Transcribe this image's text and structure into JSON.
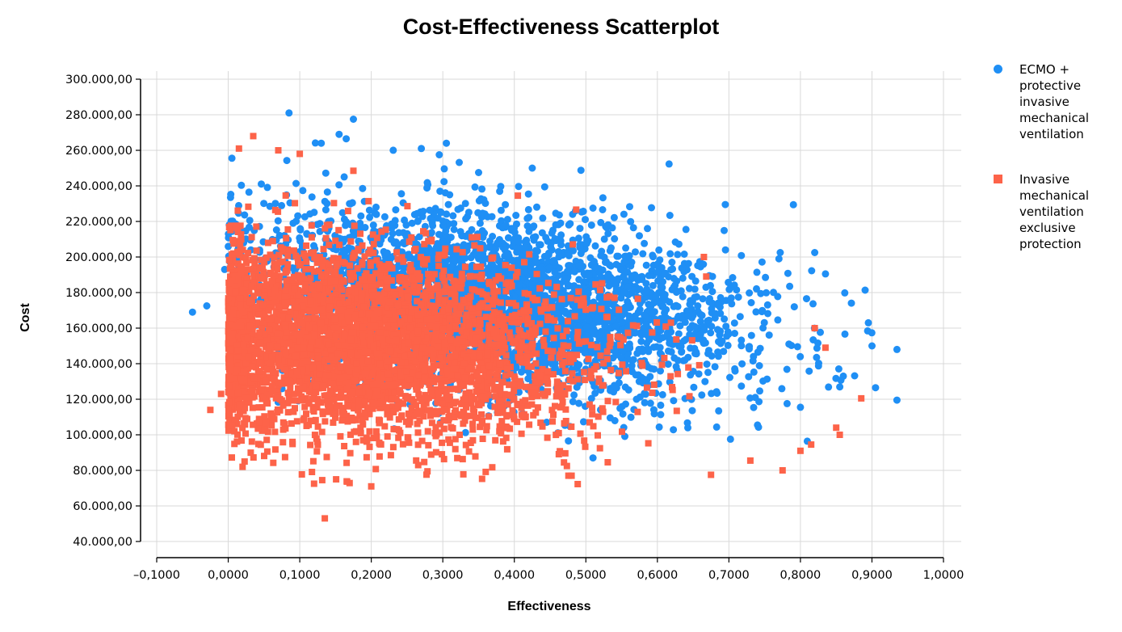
{
  "chart_data": {
    "type": "scatter",
    "title": "Cost-Effectiveness Scatterplot",
    "xlabel": "Effectiveness",
    "ylabel": "Cost",
    "xlim": [
      -0.1,
      1.0
    ],
    "ylim": [
      40000,
      300000
    ],
    "x_ticks": [
      -0.1,
      0.0,
      0.1,
      0.2,
      0.3,
      0.4,
      0.5,
      0.6,
      0.7,
      0.8,
      0.9,
      1.0
    ],
    "x_tick_labels": [
      "–0,1000",
      "0,0000",
      "0,1000",
      "0,2000",
      "0,3000",
      "0,4000",
      "0,5000",
      "0,6000",
      "0,7000",
      "0,8000",
      "0,9000",
      "1,0000"
    ],
    "y_ticks": [
      40000,
      60000,
      80000,
      100000,
      120000,
      140000,
      160000,
      180000,
      200000,
      220000,
      240000,
      260000,
      280000,
      300000
    ],
    "y_tick_labels": [
      "40.000,00",
      "60.000,00",
      "80.000,00",
      "100.000,00",
      "120.000,00",
      "140.000,00",
      "160.000,00",
      "180.000,00",
      "200.000,00",
      "220.000,00",
      "240.000,00",
      "260.000,00",
      "280.000,00",
      "300.000,00"
    ],
    "grid": true,
    "legend_position": "right",
    "series": [
      {
        "name": "ECMO + protective invasive mechanical ventilation",
        "marker": "circle",
        "color": "#1f8ff5",
        "distribution": {
          "x_mean": 0.38,
          "x_sd": 0.17,
          "y_mean": 175000,
          "y_sd": 24000,
          "slope_per_unit_x": -52000,
          "n_points": 3500
        },
        "points": [
          [
            -0.05,
            169000
          ],
          [
            -0.03,
            172500
          ],
          [
            0.085,
            281000
          ],
          [
            0.175,
            277500
          ],
          [
            0.155,
            269000
          ],
          [
            0.165,
            266500
          ],
          [
            0.13,
            264000
          ],
          [
            0.305,
            264000
          ],
          [
            0.27,
            261000
          ],
          [
            0.295,
            257500
          ],
          [
            0.425,
            250000
          ],
          [
            0.35,
            247500
          ],
          [
            0.695,
            229500
          ],
          [
            0.51,
            227500
          ],
          [
            0.64,
            215500
          ],
          [
            0.82,
            202500
          ],
          [
            0.77,
            199000
          ],
          [
            0.835,
            190500
          ],
          [
            0.785,
            183500
          ],
          [
            0.895,
            163000
          ],
          [
            0.935,
            148000
          ],
          [
            0.9,
            150000
          ],
          [
            0.905,
            126500
          ],
          [
            0.935,
            119500
          ],
          [
            0.8,
            115500
          ],
          [
            0.86,
            133000
          ],
          [
            0.74,
            105500
          ],
          [
            0.51,
            87000
          ],
          [
            -0.005,
            193000
          ]
        ]
      },
      {
        "name": "Invasive mechanical ventilation exclusive protection",
        "marker": "square",
        "color": "#fd6349",
        "distribution": {
          "x_mean": 0.18,
          "x_sd": 0.15,
          "y_mean": 150000,
          "y_sd": 26000,
          "slope_per_unit_x": -32000,
          "n_points": 4200
        },
        "points": [
          [
            0.035,
            268000
          ],
          [
            0.015,
            261000
          ],
          [
            0.07,
            260000
          ],
          [
            0.1,
            258000
          ],
          [
            0.175,
            248500
          ],
          [
            0.135,
            53000
          ],
          [
            0.2,
            71000
          ],
          [
            0.12,
            72500
          ],
          [
            -0.025,
            114000
          ],
          [
            -0.01,
            123000
          ],
          [
            0.02,
            82000
          ],
          [
            0.665,
            200000
          ],
          [
            0.82,
            160000
          ],
          [
            0.835,
            149000
          ],
          [
            0.885,
            120500
          ],
          [
            0.775,
            80000
          ],
          [
            0.855,
            100000
          ],
          [
            0.85,
            104000
          ],
          [
            0.8,
            91000
          ],
          [
            0.815,
            94500
          ],
          [
            0.73,
            85500
          ],
          [
            0.675,
            77500
          ],
          [
            0.48,
            77000
          ]
        ]
      }
    ]
  }
}
